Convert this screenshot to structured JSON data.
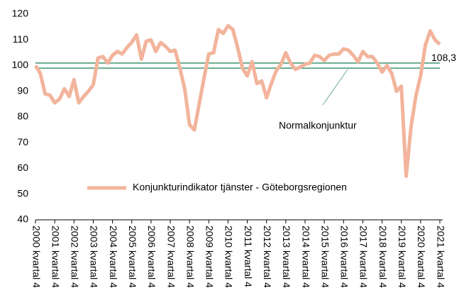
{
  "chart_data": {
    "type": "line",
    "categories": [
      "2000 kvartal 4",
      null,
      null,
      null,
      "2001 kvartal 4",
      null,
      null,
      null,
      "2002 kvartal 4",
      null,
      null,
      null,
      "2003 kvartal 4",
      null,
      null,
      null,
      "2004 kvartal 4",
      null,
      null,
      null,
      "2005 kvartal 4",
      null,
      null,
      null,
      "2006 kvartal 4",
      null,
      null,
      null,
      "2007 kvartal 4",
      null,
      null,
      null,
      "2008 kvartal 4",
      null,
      null,
      null,
      "2009 kvartal 4",
      null,
      null,
      null,
      "2010 kvartal 4",
      null,
      null,
      null,
      "2011 kvartal 4",
      null,
      null,
      null,
      "2012 kvartal 4",
      null,
      null,
      null,
      "2013 kvartal 4",
      null,
      null,
      null,
      "2014 kvartal 4",
      null,
      null,
      null,
      "2015 kvartal 4",
      null,
      null,
      null,
      "2016 kvartal 4",
      null,
      null,
      null,
      "2017 kvartal 4",
      null,
      null,
      null,
      "2018 kvartal 4",
      null,
      null,
      null,
      "2019 kvartal 4",
      null,
      null,
      null,
      "2020 kvartal 4",
      null,
      null,
      null,
      "2021 kvartal 4"
    ],
    "series": [
      {
        "name": "Konjunkturindikator tjänster - Göteborgsregionen",
        "color": "#f2b49c",
        "values": [
          100,
          97,
          89,
          88.5,
          85.5,
          87,
          91,
          88,
          94.5,
          85.5,
          88,
          90,
          92.5,
          103,
          103.5,
          101,
          104,
          105.5,
          104.5,
          107,
          109,
          112,
          102.5,
          109.5,
          110,
          105.5,
          109,
          107.5,
          105.5,
          106,
          99,
          91,
          77,
          75,
          85,
          95,
          104.5,
          105,
          114,
          112.5,
          115.5,
          114,
          107,
          99,
          96,
          101.5,
          93,
          94,
          87.5,
          93,
          98,
          100.5,
          105,
          101,
          98.5,
          99.5,
          100.5,
          101,
          104,
          103.5,
          102,
          104,
          104.5,
          104.5,
          106.5,
          106,
          104,
          101.5,
          105.5,
          103.5,
          103.5,
          101,
          97.5,
          100,
          97,
          90,
          92,
          57,
          76,
          88,
          96,
          108,
          113.5,
          110,
          108.3
        ],
        "value_labels": [
          null,
          null,
          null,
          null,
          null,
          null,
          null,
          null,
          null,
          null,
          null,
          null,
          null,
          null,
          null,
          null,
          null,
          null,
          null,
          null,
          null,
          null,
          null,
          null,
          null,
          null,
          null,
          null,
          null,
          null,
          null,
          null,
          null,
          null,
          null,
          null,
          null,
          null,
          null,
          null,
          null,
          null,
          null,
          null,
          null,
          null,
          null,
          null,
          null,
          null,
          null,
          null,
          null,
          null,
          null,
          null,
          null,
          null,
          null,
          null,
          null,
          null,
          null,
          null,
          null,
          null,
          null,
          null,
          null,
          null,
          null,
          null,
          null,
          null,
          null,
          null,
          null,
          null,
          null,
          null,
          null,
          null,
          null,
          null,
          "108,3"
        ]
      }
    ],
    "reference_lines": [
      {
        "value": 101
      },
      {
        "value": 99
      }
    ],
    "reference_color": "#6aab8e",
    "annotation": "Normalkonjunktur",
    "ylim": [
      40,
      120
    ],
    "yticks": [
      40,
      50,
      60,
      70,
      80,
      90,
      100,
      110,
      120
    ],
    "grid": false,
    "legend": "center"
  }
}
